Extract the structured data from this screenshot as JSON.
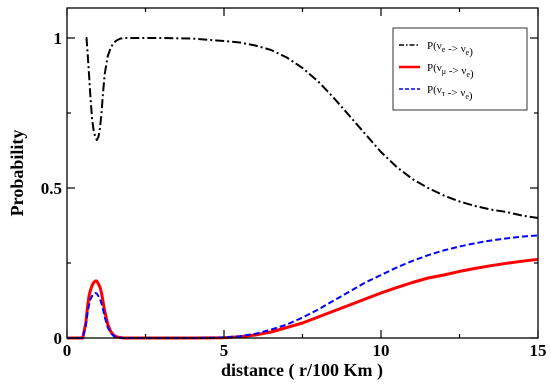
{
  "chart_data": {
    "type": "line",
    "xlabel": "distance ( r/100 Km )",
    "ylabel": "Probability",
    "xlim": [
      0,
      15
    ],
    "ylim": [
      0,
      1.1
    ],
    "xticks": [
      "0",
      "5",
      "10",
      "15"
    ],
    "yticks": [
      "0",
      "0.5",
      "1"
    ],
    "grid": false,
    "legend_position": "top-right",
    "series": [
      {
        "name": "P(νe -> νe)",
        "legend": {
          "pre": "P(ν",
          "sub": "e",
          "mid": " -> ν",
          "sub2": "e",
          "post": ")"
        },
        "color": "#000000",
        "style": "dash-dot",
        "x": [
          0.6,
          0.62,
          0.65,
          0.7,
          0.75,
          0.8,
          0.85,
          0.9,
          0.95,
          1.0,
          1.05,
          1.1,
          1.15,
          1.2,
          1.3,
          1.4,
          1.5,
          1.6,
          1.7,
          1.8,
          2.0,
          2.5,
          3.0,
          4.0,
          5.0,
          5.5,
          6.0,
          6.5,
          7.0,
          7.5,
          8.0,
          8.5,
          9.0,
          9.5,
          10.0,
          10.5,
          11.0,
          11.5,
          12.0,
          12.5,
          13.0,
          13.5,
          14.0,
          14.5,
          15.0
        ],
        "y": [
          1.0,
          1.0,
          0.96,
          0.88,
          0.8,
          0.73,
          0.69,
          0.67,
          0.66,
          0.67,
          0.7,
          0.75,
          0.82,
          0.88,
          0.94,
          0.97,
          0.985,
          0.993,
          0.998,
          1.0,
          1.0,
          1.0,
          1.0,
          0.998,
          0.99,
          0.985,
          0.975,
          0.96,
          0.935,
          0.9,
          0.855,
          0.8,
          0.74,
          0.68,
          0.62,
          0.57,
          0.53,
          0.5,
          0.475,
          0.455,
          0.44,
          0.428,
          0.42,
          0.408,
          0.4
        ]
      },
      {
        "name": "P(νμ -> νe)",
        "legend": {
          "pre": "P(ν",
          "sub": "μ",
          "mid": " -> ν",
          "sub2": "e",
          "post": ")"
        },
        "color": "#ff0000",
        "style": "solid",
        "x": [
          0.0,
          0.5,
          0.6,
          0.65,
          0.7,
          0.75,
          0.8,
          0.85,
          0.9,
          0.95,
          1.0,
          1.05,
          1.1,
          1.15,
          1.2,
          1.3,
          1.4,
          1.5,
          1.6,
          1.8,
          2.0,
          3.0,
          4.0,
          5.0,
          5.5,
          6.0,
          6.5,
          7.0,
          7.5,
          8.0,
          8.5,
          9.0,
          9.5,
          10.0,
          10.5,
          11.0,
          11.5,
          12.0,
          12.5,
          13.0,
          13.5,
          14.0,
          14.5,
          15.0
        ],
        "y": [
          0.0,
          0.0,
          0.05,
          0.1,
          0.14,
          0.16,
          0.175,
          0.185,
          0.19,
          0.19,
          0.18,
          0.17,
          0.15,
          0.12,
          0.09,
          0.045,
          0.02,
          0.008,
          0.003,
          0.0,
          0.0,
          0.0,
          0.0,
          0.001,
          0.004,
          0.01,
          0.02,
          0.035,
          0.05,
          0.07,
          0.09,
          0.11,
          0.13,
          0.15,
          0.168,
          0.185,
          0.2,
          0.21,
          0.222,
          0.232,
          0.241,
          0.249,
          0.256,
          0.262
        ]
      },
      {
        "name": "P(ντ -> νe)",
        "legend": {
          "pre": "P(ν",
          "sub": "τ",
          "mid": " -> ν",
          "sub2": "e",
          "post": ")"
        },
        "color": "#0000ff",
        "style": "dashed",
        "x": [
          0.0,
          0.5,
          0.6,
          0.65,
          0.7,
          0.75,
          0.8,
          0.85,
          0.9,
          0.95,
          1.0,
          1.05,
          1.1,
          1.15,
          1.2,
          1.3,
          1.4,
          1.5,
          1.6,
          1.8,
          2.0,
          3.0,
          4.0,
          5.0,
          5.5,
          6.0,
          6.5,
          7.0,
          7.5,
          8.0,
          8.5,
          9.0,
          9.5,
          10.0,
          10.5,
          11.0,
          11.5,
          12.0,
          12.5,
          13.0,
          13.5,
          14.0,
          14.5,
          15.0
        ],
        "y": [
          0.0,
          0.0,
          0.04,
          0.08,
          0.11,
          0.13,
          0.14,
          0.148,
          0.15,
          0.148,
          0.14,
          0.13,
          0.115,
          0.095,
          0.07,
          0.035,
          0.015,
          0.006,
          0.002,
          0.0,
          0.0,
          0.0,
          0.0,
          0.002,
          0.006,
          0.014,
          0.028,
          0.045,
          0.068,
          0.095,
          0.125,
          0.155,
          0.185,
          0.21,
          0.235,
          0.257,
          0.276,
          0.292,
          0.305,
          0.316,
          0.325,
          0.332,
          0.338,
          0.342
        ]
      }
    ]
  }
}
